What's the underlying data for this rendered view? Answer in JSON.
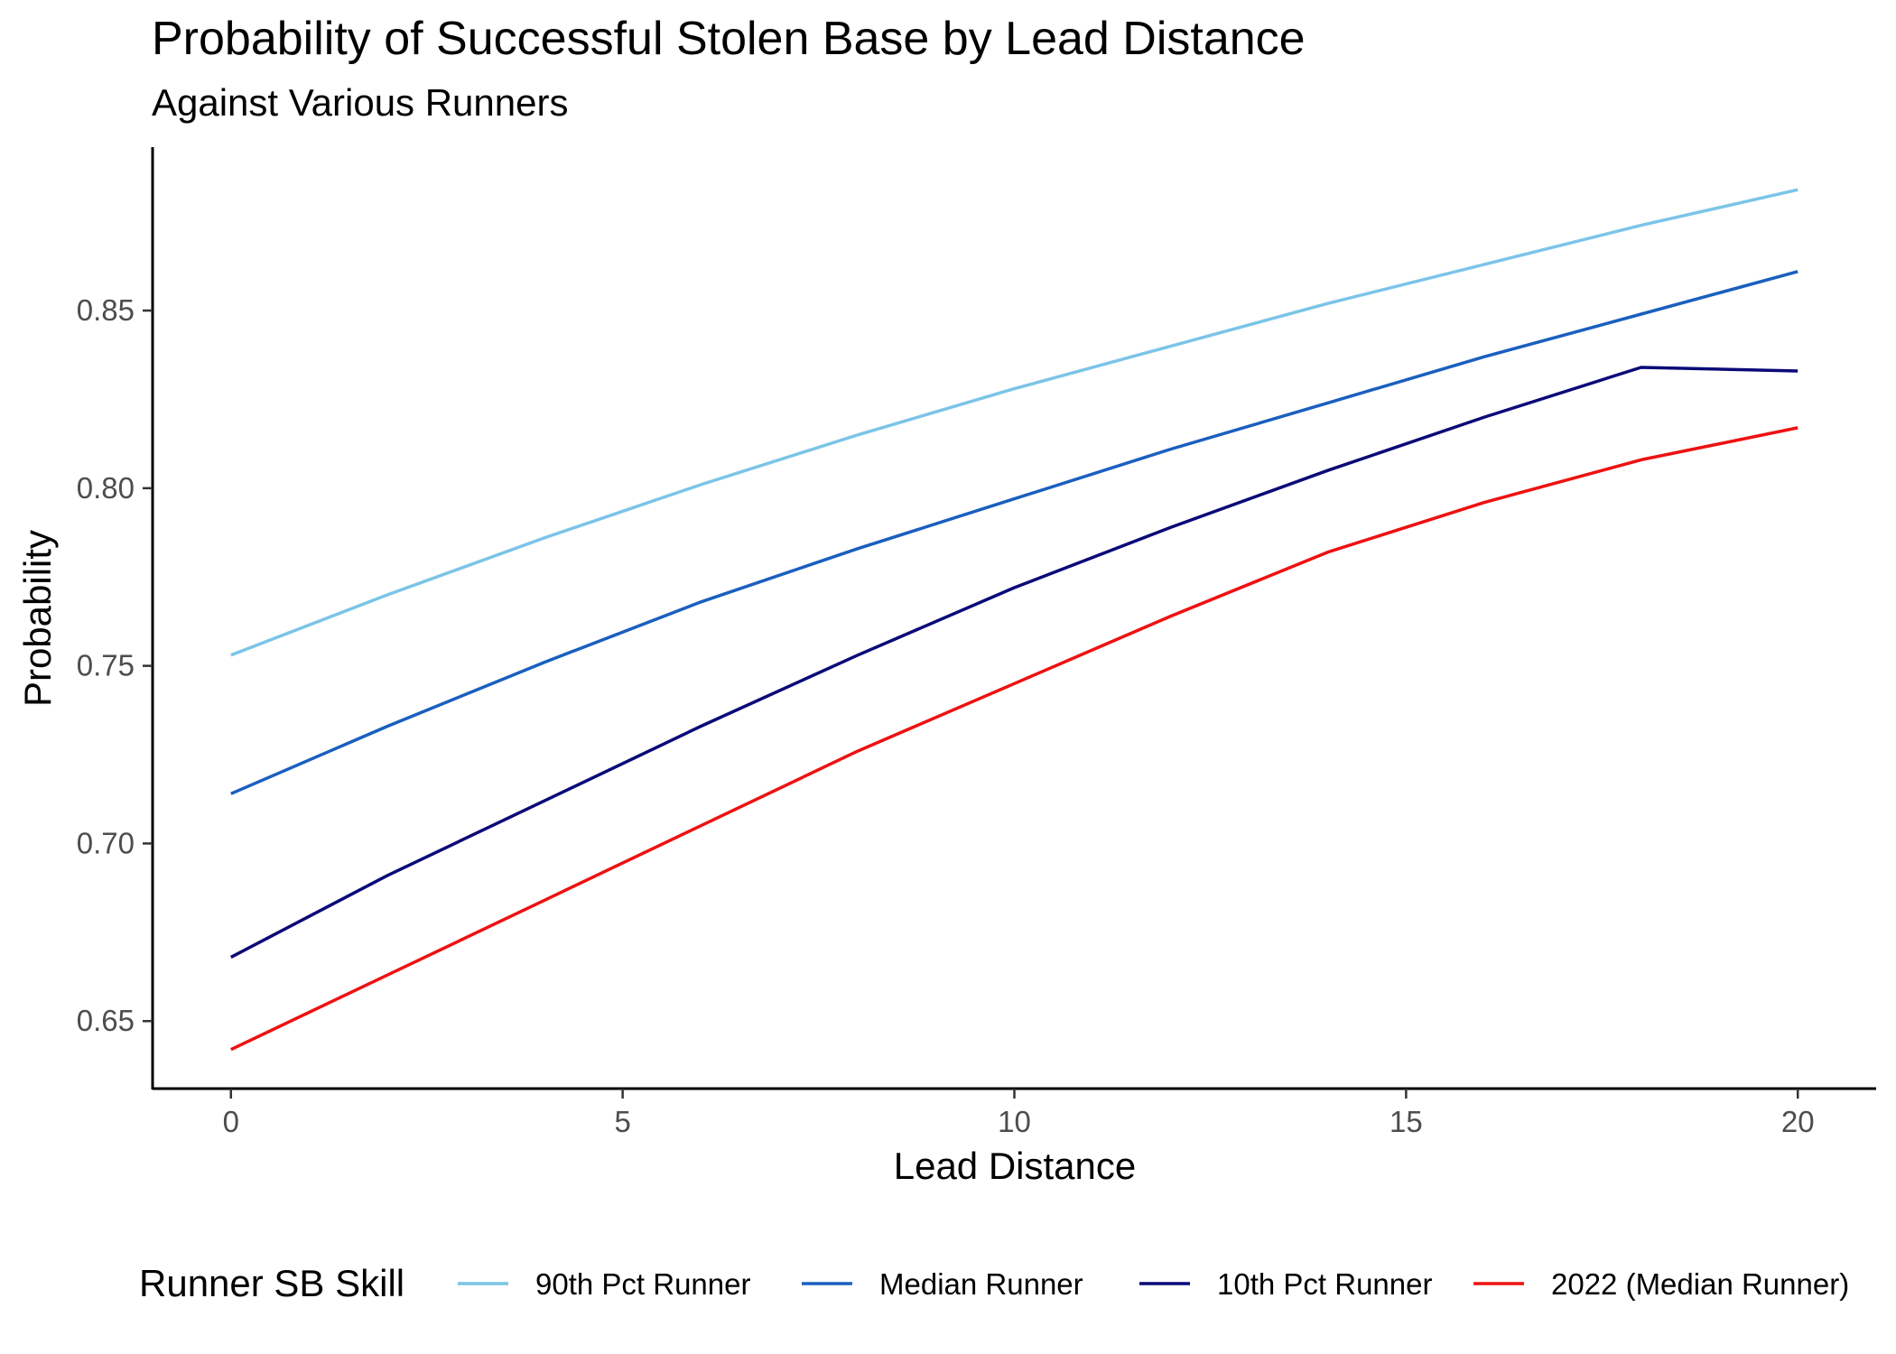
{
  "chart_data": {
    "type": "line",
    "title": "Probability of Successful Stolen Base by Lead Distance",
    "subtitle": "Against Various Runners",
    "xlabel": "Lead Distance",
    "ylabel": "Probability",
    "xlim": [
      -1,
      21
    ],
    "ylim": [
      0.631,
      0.896
    ],
    "x_ticks": [
      0,
      5,
      10,
      15,
      20
    ],
    "x_tick_labels": [
      "0",
      "5",
      "10",
      "15",
      "20"
    ],
    "y_ticks": [
      0.65,
      0.7,
      0.75,
      0.8,
      0.85
    ],
    "y_tick_labels": [
      "0.65",
      "0.70",
      "0.75",
      "0.80",
      "0.85"
    ],
    "grid": false,
    "legend": {
      "title": "Runner SB Skill",
      "position": "bottom"
    },
    "x": [
      0,
      2,
      4,
      6,
      8,
      10,
      12,
      14,
      16,
      18,
      20
    ],
    "series": [
      {
        "name": "90th Pct Runner",
        "color": "#7bc4e8",
        "values": [
          0.753,
          0.77,
          0.786,
          0.801,
          0.815,
          0.828,
          0.84,
          0.852,
          0.863,
          0.874,
          0.884
        ]
      },
      {
        "name": "Median Runner",
        "color": "#1a5fbf",
        "values": [
          0.714,
          0.733,
          0.751,
          0.768,
          0.783,
          0.797,
          0.811,
          0.824,
          0.837,
          0.849,
          0.861
        ]
      },
      {
        "name": "10th Pct Runner",
        "color": "#0a0a78",
        "values": [
          0.668,
          0.691,
          0.712,
          0.733,
          0.753,
          0.772,
          0.789,
          0.805,
          0.82,
          0.834,
          0.833
        ]
      },
      {
        "name": "2022 (Median Runner)",
        "color": "#ee1111",
        "values": [
          0.642,
          0.663,
          0.684,
          0.705,
          0.726,
          0.745,
          0.764,
          0.782,
          0.796,
          0.808,
          0.817
        ]
      }
    ]
  }
}
